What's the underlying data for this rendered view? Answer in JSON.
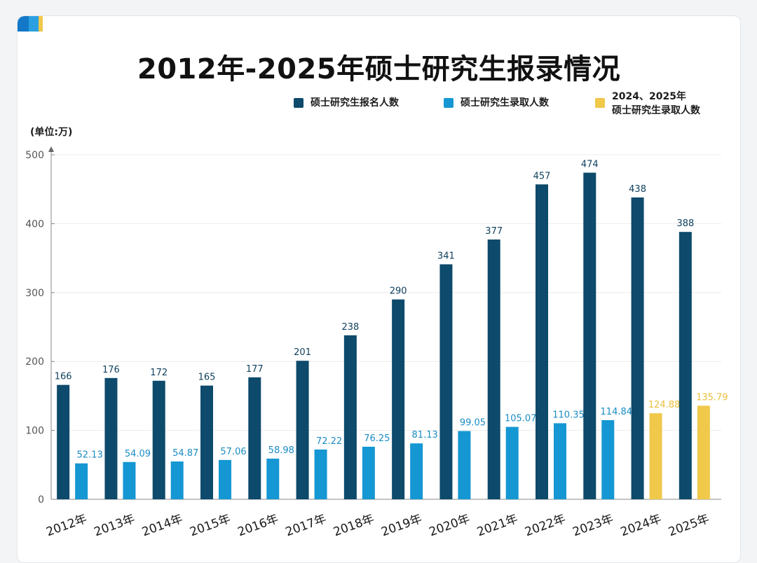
{
  "chart_data": {
    "type": "bar",
    "title": "2012年-2025年硕士研究生报录情况",
    "unit_label": "(单位:万)",
    "categories": [
      "2012年",
      "2013年",
      "2014年",
      "2015年",
      "2016年",
      "2017年",
      "2018年",
      "2019年",
      "2020年",
      "2021年",
      "2022年",
      "2023年",
      "2024年",
      "2025年"
    ],
    "series": [
      {
        "name": "硕士研究生报名人数",
        "color": "#0d4a6b",
        "values": [
          166,
          176,
          172,
          165,
          177,
          201,
          238,
          290,
          341,
          377,
          457,
          474,
          438,
          388
        ],
        "labels": [
          "166",
          "176",
          "172",
          "165",
          "177",
          "201",
          "238",
          "290",
          "341",
          "377",
          "457",
          "474",
          "438",
          "388"
        ]
      },
      {
        "name": "硕士研究生录取人数",
        "color": "#1597d3",
        "values": [
          52.13,
          54.09,
          54.87,
          57.06,
          58.98,
          72.22,
          76.25,
          81.13,
          99.05,
          105.07,
          110.35,
          114.84,
          null,
          null
        ],
        "labels": [
          "52.13",
          "54.09",
          "54.87",
          "57.06",
          "58.98",
          "72.22",
          "76.25",
          "81.13",
          "99.05",
          "105.07",
          "110.35",
          "114.84",
          "",
          ""
        ]
      },
      {
        "name": "2024、2025年\n硕士研究生录取人数",
        "name_lines": [
          "2024、2025年",
          "硕士研究生录取人数"
        ],
        "color": "#f0c84a",
        "values": [
          null,
          null,
          null,
          null,
          null,
          null,
          null,
          null,
          null,
          null,
          null,
          null,
          124.88,
          135.79
        ],
        "labels": [
          "",
          "",
          "",
          "",
          "",
          "",
          "",
          "",
          "",
          "",
          "",
          "",
          "124.88",
          "135.79"
        ]
      }
    ],
    "ylim": [
      0,
      500
    ],
    "yticks": [
      0,
      100,
      200,
      300,
      400,
      500
    ],
    "legend_position": "top-right",
    "grid": true
  }
}
